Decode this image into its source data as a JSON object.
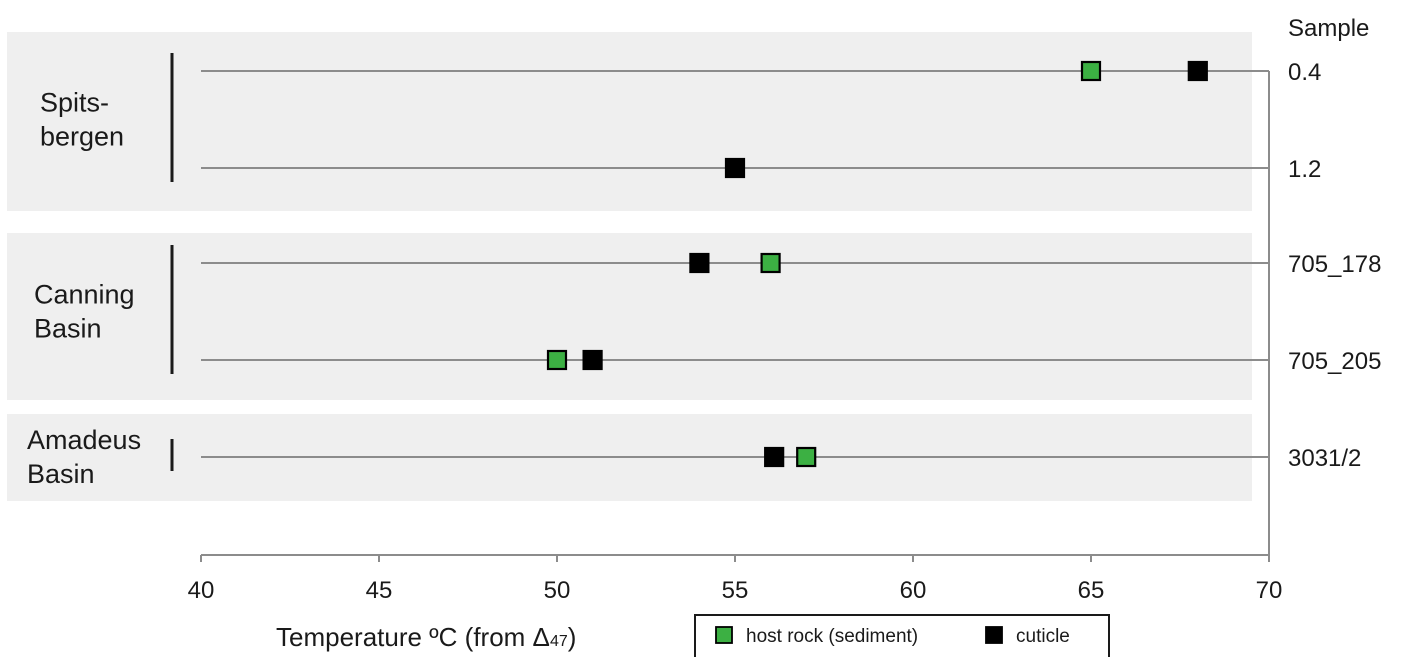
{
  "chart_data": {
    "type": "scatter",
    "xlabel": "Temperature ºC (from Δ47)",
    "xlabel_parts": {
      "main": "Temperature ºC (from Δ",
      "subscript": "47",
      "close": ")"
    },
    "xlim": [
      40,
      70
    ],
    "x_ticks": [
      40,
      45,
      50,
      55,
      60,
      65,
      70
    ],
    "right_axis_title": "Sample",
    "samples": [
      "0.4",
      "1.2",
      "705_178",
      "705_205",
      "3031/2"
    ],
    "groups": [
      {
        "lines": [
          "Spits-",
          "bergen"
        ],
        "samples": [
          "0.4",
          "1.2"
        ]
      },
      {
        "lines": [
          "Canning",
          "Basin"
        ],
        "samples": [
          "705_178",
          "705_205"
        ]
      },
      {
        "lines": [
          "Amadeus",
          "Basin"
        ],
        "samples": [
          "3031/2"
        ]
      }
    ],
    "series": [
      {
        "name": "host rock (sediment)",
        "color": "#3cb043",
        "points": [
          {
            "sample": "0.4",
            "x": 65
          },
          {
            "sample": "705_178",
            "x": 56
          },
          {
            "sample": "705_205",
            "x": 50
          },
          {
            "sample": "3031/2",
            "x": 57
          }
        ]
      },
      {
        "name": "cuticle",
        "color": "#000000",
        "points": [
          {
            "sample": "0.4",
            "x": 68
          },
          {
            "sample": "1.2",
            "x": 55
          },
          {
            "sample": "705_178",
            "x": 54
          },
          {
            "sample": "705_205",
            "x": 51
          },
          {
            "sample": "3031/2",
            "x": 56.1
          }
        ]
      }
    ],
    "legend_position": "bottom-center",
    "band_color": "#efefef"
  }
}
